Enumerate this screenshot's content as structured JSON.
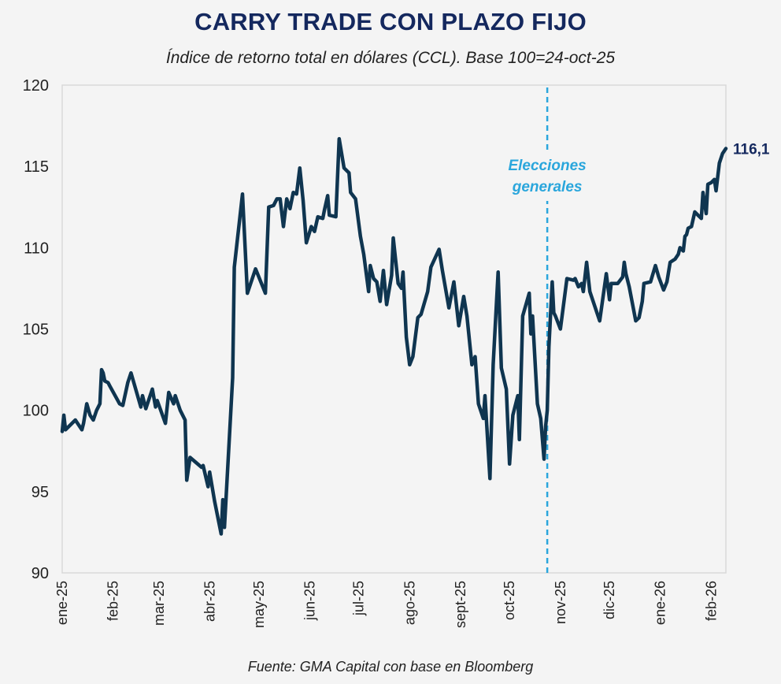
{
  "chart_data": {
    "type": "line",
    "title": "CARRY TRADE CON PLAZO FIJO",
    "subtitle": "Índice de retorno total en dólares (CCL). Base 100=24-oct-25",
    "source": "Fuente: GMA Capital con base en Bloomberg",
    "xlabel": "",
    "ylabel": "",
    "xlim": [
      "2025-01-01",
      "2026-02-10"
    ],
    "ylim": [
      90,
      120
    ],
    "yticks": [
      "90",
      "95",
      "100",
      "105",
      "110",
      "115",
      "120"
    ],
    "xticks": [
      {
        "date": "2025-01-01",
        "label": "ene-25"
      },
      {
        "date": "2025-02-01",
        "label": "feb-25"
      },
      {
        "date": "2025-03-01",
        "label": "mar-25"
      },
      {
        "date": "2025-04-01",
        "label": "abr-25"
      },
      {
        "date": "2025-05-01",
        "label": "may-25"
      },
      {
        "date": "2025-06-01",
        "label": "jun-25"
      },
      {
        "date": "2025-07-01",
        "label": "jul-25"
      },
      {
        "date": "2025-08-01",
        "label": "ago-25"
      },
      {
        "date": "2025-09-01",
        "label": "sept-25"
      },
      {
        "date": "2025-10-01",
        "label": "oct-25"
      },
      {
        "date": "2025-11-01",
        "label": "nov-25"
      },
      {
        "date": "2025-12-01",
        "label": "dic-25"
      },
      {
        "date": "2026-01-01",
        "label": "ene-26"
      },
      {
        "date": "2026-02-01",
        "label": "feb-26"
      }
    ],
    "grid": false,
    "line_color": "#0f3550",
    "annotation": {
      "date": "2025-10-24",
      "lines": [
        "Elecciones",
        "generales"
      ],
      "color": "#2aa6dc",
      "style": "dashed vertical line"
    },
    "end_label": "116,1",
    "series": [
      {
        "dates": [
          "2025-01-01",
          "2025-01-02",
          "2025-01-03",
          "2025-01-09",
          "2025-01-13",
          "2025-01-14",
          "2025-01-16",
          "2025-01-18",
          "2025-01-20",
          "2025-01-22",
          "2025-01-24",
          "2025-01-25",
          "2025-01-26",
          "2025-01-27",
          "2025-01-29",
          "2025-01-30",
          "2025-02-05",
          "2025-02-07",
          "2025-02-10",
          "2025-02-12",
          "2025-02-14",
          "2025-02-18",
          "2025-02-19",
          "2025-02-21",
          "2025-02-25",
          "2025-02-27",
          "2025-02-28",
          "2025-03-05",
          "2025-03-07",
          "2025-03-10",
          "2025-03-11",
          "2025-03-14",
          "2025-03-17",
          "2025-03-18",
          "2025-03-20",
          "2025-03-27",
          "2025-03-28",
          "2025-03-31",
          "2025-04-01",
          "2025-04-04",
          "2025-04-08",
          "2025-04-09",
          "2025-04-10",
          "2025-04-15",
          "2025-04-16",
          "2025-04-21",
          "2025-04-24",
          "2025-04-29",
          "2025-05-05",
          "2025-05-07",
          "2025-05-10",
          "2025-05-12",
          "2025-05-14",
          "2025-05-16",
          "2025-05-18",
          "2025-05-20",
          "2025-05-22",
          "2025-05-24",
          "2025-05-26",
          "2025-05-28",
          "2025-05-30",
          "2025-06-02",
          "2025-06-04",
          "2025-06-06",
          "2025-06-09",
          "2025-06-10",
          "2025-06-12",
          "2025-06-13",
          "2025-06-17",
          "2025-06-19",
          "2025-06-22",
          "2025-06-25",
          "2025-06-26",
          "2025-06-29",
          "2025-07-02",
          "2025-07-04",
          "2025-07-07",
          "2025-07-08",
          "2025-07-10",
          "2025-07-12",
          "2025-07-14",
          "2025-07-16",
          "2025-07-18",
          "2025-07-21",
          "2025-07-22",
          "2025-07-25",
          "2025-07-27",
          "2025-07-28",
          "2025-07-30",
          "2025-08-01",
          "2025-08-03",
          "2025-08-06",
          "2025-08-08",
          "2025-08-12",
          "2025-08-14",
          "2025-08-19",
          "2025-08-21",
          "2025-08-25",
          "2025-08-28",
          "2025-08-31",
          "2025-09-03",
          "2025-09-05",
          "2025-09-08",
          "2025-09-10",
          "2025-09-12",
          "2025-09-15",
          "2025-09-16",
          "2025-09-19",
          "2025-09-21",
          "2025-09-24",
          "2025-09-26",
          "2025-09-29",
          "2025-10-01",
          "2025-10-03",
          "2025-10-06",
          "2025-10-07",
          "2025-10-09",
          "2025-10-13",
          "2025-10-14",
          "2025-10-15",
          "2025-10-18",
          "2025-10-20",
          "2025-10-22",
          "2025-10-23",
          "2025-10-24",
          "2025-10-25",
          "2025-10-27",
          "2025-10-28",
          "2025-10-29",
          "2025-11-01",
          "2025-11-05",
          "2025-11-09",
          "2025-11-10",
          "2025-11-12",
          "2025-11-14",
          "2025-11-15",
          "2025-11-17",
          "2025-11-19",
          "2025-11-25",
          "2025-11-29",
          "2025-12-01",
          "2025-12-02",
          "2025-12-06",
          "2025-12-09",
          "2025-12-10",
          "2025-12-11",
          "2025-12-13",
          "2025-12-17",
          "2025-12-19",
          "2025-12-21",
          "2025-12-22",
          "2025-12-26",
          "2025-12-29",
          "2025-12-31",
          "2026-01-03",
          "2026-01-05",
          "2026-01-07",
          "2026-01-10",
          "2026-01-12",
          "2026-01-13",
          "2026-01-15",
          "2026-01-16",
          "2026-01-17",
          "2026-01-18",
          "2026-01-20",
          "2026-01-22",
          "2026-01-24",
          "2026-01-26",
          "2026-01-27",
          "2026-01-29",
          "2026-01-30",
          "2026-02-01",
          "2026-02-03",
          "2026-02-04",
          "2026-02-06",
          "2026-02-08",
          "2026-02-10"
        ],
        "values": [
          98.7,
          99.7,
          98.8,
          99.4,
          98.8,
          99.2,
          100.4,
          99.7,
          99.4,
          100.0,
          100.4,
          102.5,
          102.3,
          101.8,
          101.7,
          101.5,
          100.4,
          100.3,
          101.7,
          102.3,
          101.6,
          100.2,
          100.9,
          100.1,
          101.3,
          100.2,
          100.6,
          99.2,
          101.1,
          100.4,
          100.9,
          100.0,
          99.4,
          95.7,
          97.1,
          96.5,
          96.6,
          95.3,
          96.2,
          94.4,
          92.4,
          94.5,
          92.8,
          102.0,
          108.8,
          113.3,
          107.2,
          108.7,
          107.2,
          112.5,
          112.6,
          113.0,
          113.0,
          111.3,
          113.0,
          112.4,
          113.4,
          113.3,
          114.9,
          112.9,
          110.3,
          111.3,
          111.0,
          111.9,
          111.8,
          112.3,
          113.2,
          112.0,
          111.9,
          116.7,
          114.9,
          114.6,
          113.4,
          113.0,
          110.7,
          109.6,
          107.3,
          108.9,
          108.1,
          107.9,
          106.7,
          108.6,
          106.5,
          108.3,
          110.6,
          107.8,
          107.5,
          108.5,
          104.5,
          102.8,
          103.3,
          105.7,
          105.9,
          107.3,
          108.8,
          109.9,
          108.6,
          106.3,
          107.9,
          105.2,
          107.0,
          105.8,
          102.8,
          103.3,
          100.4,
          99.5,
          100.9,
          95.8,
          102.8,
          108.5,
          102.6,
          101.3,
          96.7,
          99.7,
          100.9,
          98.2,
          105.8,
          107.2,
          104.7,
          105.8,
          100.4,
          99.5,
          97.0,
          99.0,
          100.0,
          103.9,
          107.9,
          106.0,
          105.8,
          105.0,
          108.1,
          108.0,
          108.1,
          107.6,
          107.8,
          107.3,
          109.1,
          107.3,
          105.5,
          108.4,
          106.8,
          107.8,
          107.8,
          108.2,
          109.1,
          108.4,
          107.6,
          105.5,
          105.7,
          106.7,
          107.8,
          107.9,
          108.9,
          108.2,
          107.4,
          107.9,
          109.1,
          109.3,
          109.6,
          110.0,
          109.8,
          110.7,
          110.8,
          111.2,
          111.3,
          112.2,
          112.0,
          111.8,
          113.4,
          112.1,
          113.9,
          114.0,
          114.2,
          113.5,
          115.2,
          115.8,
          116.1
        ]
      }
    ]
  }
}
